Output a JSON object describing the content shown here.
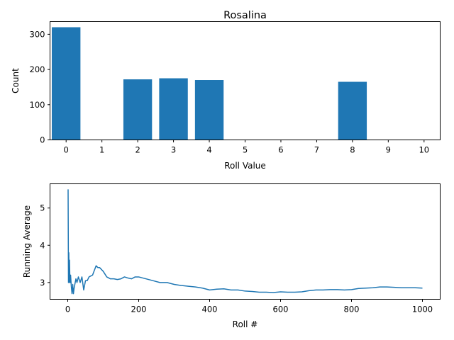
{
  "chart_data": [
    {
      "type": "bar",
      "title": "Rosalina",
      "xlabel": "Roll Value",
      "ylabel": "Count",
      "categories": [
        "0",
        "1",
        "2",
        "3",
        "4",
        "5",
        "6",
        "7",
        "8",
        "9",
        "10"
      ],
      "values": [
        320,
        0,
        172,
        175,
        170,
        0,
        0,
        0,
        165,
        0,
        0
      ],
      "xlim": [
        -0.45,
        10.45
      ],
      "ylim": [
        0,
        336
      ],
      "yticks": [
        0,
        100,
        200,
        300
      ],
      "color": "#1f77b4",
      "grid": false
    },
    {
      "type": "line",
      "title": "",
      "xlabel": "Roll #",
      "ylabel": "Running Average",
      "xlim": [
        -50,
        1050
      ],
      "ylim": [
        2.55,
        5.65
      ],
      "xticks": [
        0,
        200,
        400,
        600,
        800,
        1000
      ],
      "yticks": [
        3,
        4,
        5
      ],
      "color": "#1f77b4",
      "grid": false,
      "series": [
        {
          "x": [
            1,
            2,
            3,
            4,
            5,
            6,
            7,
            8,
            10,
            12,
            14,
            16,
            18,
            20,
            23,
            26,
            30,
            35,
            40,
            45,
            50,
            55,
            60,
            70,
            80,
            85,
            90,
            100,
            110,
            120,
            130,
            140,
            150,
            160,
            170,
            180,
            190,
            200,
            220,
            240,
            260,
            280,
            300,
            320,
            340,
            360,
            380,
            400,
            420,
            440,
            460,
            480,
            500,
            520,
            540,
            560,
            580,
            600,
            620,
            640,
            660,
            680,
            700,
            720,
            740,
            760,
            780,
            800,
            820,
            840,
            860,
            880,
            900,
            920,
            940,
            960,
            980,
            1000
          ],
          "y": [
            5.5,
            3.0,
            3.8,
            3.0,
            3.6,
            3.1,
            3.0,
            3.2,
            2.9,
            2.7,
            2.95,
            2.7,
            2.85,
            2.95,
            3.1,
            3.0,
            3.15,
            3.0,
            3.15,
            2.8,
            3.05,
            3.05,
            3.15,
            3.2,
            3.45,
            3.4,
            3.4,
            3.3,
            3.15,
            3.1,
            3.1,
            3.08,
            3.1,
            3.15,
            3.12,
            3.1,
            3.15,
            3.15,
            3.1,
            3.05,
            3.0,
            3.0,
            2.95,
            2.92,
            2.9,
            2.88,
            2.85,
            2.8,
            2.82,
            2.83,
            2.8,
            2.8,
            2.77,
            2.76,
            2.74,
            2.74,
            2.73,
            2.75,
            2.74,
            2.74,
            2.75,
            2.78,
            2.8,
            2.8,
            2.81,
            2.81,
            2.8,
            2.81,
            2.84,
            2.85,
            2.86,
            2.88,
            2.88,
            2.87,
            2.86,
            2.86,
            2.86,
            2.85
          ]
        }
      ]
    }
  ]
}
